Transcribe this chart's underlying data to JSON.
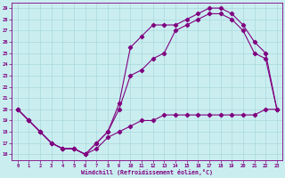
{
  "xlabel": "Windchill (Refroidissement éolien,°C)",
  "bg_color": "#caeef0",
  "line_color": "#800080",
  "grid_color": "#aad8dc",
  "xlim": [
    -0.5,
    23.5
  ],
  "ylim": [
    15.5,
    29.5
  ],
  "xticks": [
    0,
    1,
    2,
    3,
    4,
    5,
    6,
    7,
    8,
    9,
    10,
    11,
    12,
    13,
    14,
    15,
    16,
    17,
    18,
    19,
    20,
    21,
    22,
    23
  ],
  "yticks": [
    16,
    17,
    18,
    19,
    20,
    21,
    22,
    23,
    24,
    25,
    26,
    27,
    28,
    29
  ],
  "line1_x": [
    0,
    1,
    2,
    3,
    4,
    5,
    6,
    7,
    8,
    9,
    10,
    11,
    12,
    13,
    14,
    15,
    16,
    17,
    18,
    19,
    20,
    21,
    22,
    23
  ],
  "line1_y": [
    20,
    19,
    18,
    17,
    16.5,
    16.5,
    16,
    16.5,
    17.5,
    18,
    18.5,
    19,
    19,
    19.5,
    19.5,
    19.5,
    19.5,
    19.5,
    19.5,
    19.5,
    19.5,
    19.5,
    20,
    20
  ],
  "line2_x": [
    0,
    1,
    2,
    3,
    4,
    5,
    6,
    7,
    8,
    9,
    10,
    11,
    12,
    13,
    14,
    15,
    16,
    17,
    18,
    19,
    20,
    21,
    22,
    23
  ],
  "line2_y": [
    20,
    19,
    18,
    17,
    16.5,
    16.5,
    16,
    17,
    18,
    20,
    23,
    23.5,
    24.5,
    25,
    27,
    27.5,
    28,
    28.5,
    28.5,
    28,
    27,
    25,
    24.5,
    20
  ],
  "line3_x": [
    0,
    1,
    2,
    3,
    4,
    5,
    6,
    7,
    8,
    9,
    10,
    11,
    12,
    13,
    14,
    15,
    16,
    17,
    18,
    19,
    20,
    21,
    22,
    23
  ],
  "line3_y": [
    20,
    19,
    18,
    17,
    16.5,
    16.5,
    16,
    17,
    18,
    20.5,
    25.5,
    26.5,
    27.5,
    27.5,
    27.5,
    28,
    28.5,
    29,
    29,
    28.5,
    27.5,
    26,
    25,
    20
  ]
}
